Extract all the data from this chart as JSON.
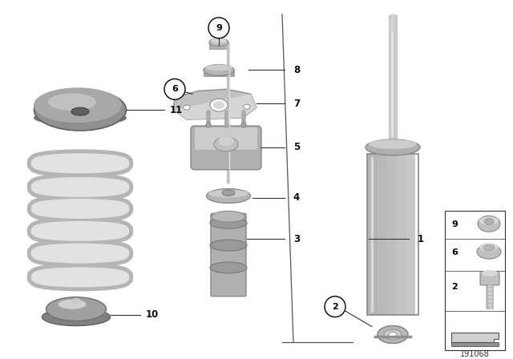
{
  "background_color": "#ffffff",
  "part_number_label": "191068",
  "line_color": "#333333",
  "text_color": "#111111",
  "gray_part": "#b0b0b0",
  "gray_light": "#d0d0d0",
  "gray_dark": "#888888",
  "gray_white": "#e8e8e8",
  "spring_color": "#e0e0e0",
  "spring_shadow": "#b8b8b8"
}
